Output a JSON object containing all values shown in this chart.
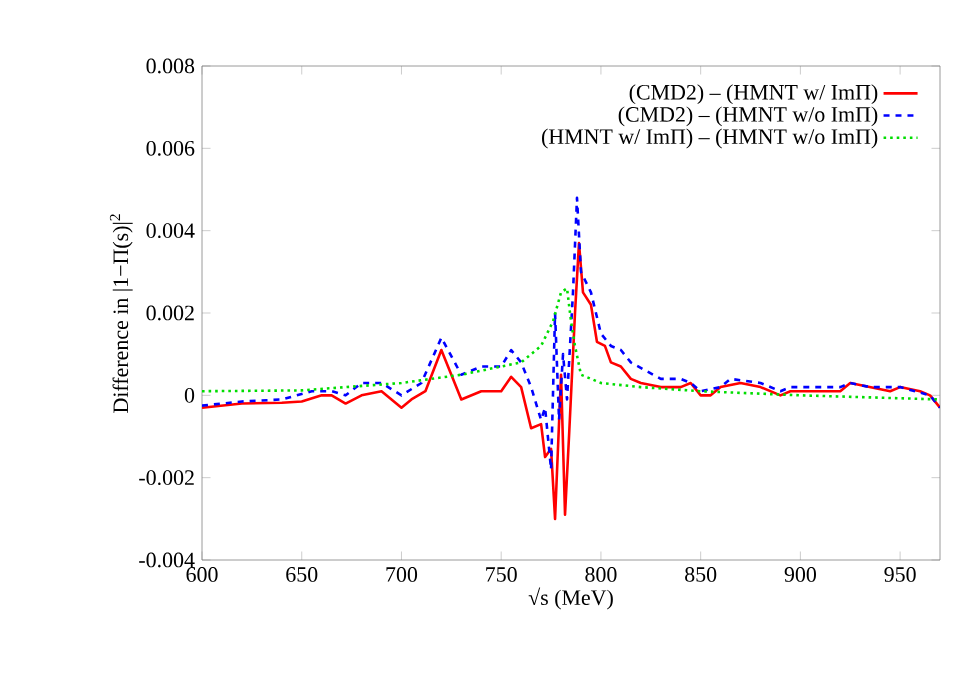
{
  "chart_data": {
    "type": "line",
    "xlabel": "√s (MeV)",
    "ylabel": "Difference in |1−Π(s)|$^{2}$",
    "xlim": [
      600,
      970
    ],
    "xticks": [
      600,
      650,
      700,
      750,
      800,
      850,
      900,
      950
    ],
    "ylim": [
      -0.004,
      0.008
    ],
    "yticks": [
      -0.004,
      -0.002,
      0,
      0.002,
      0.004,
      0.006,
      0.008
    ],
    "legend": "top right",
    "grid": false,
    "marker": "none",
    "series": [
      {
        "name": "(CMD2) – (HMNT w/  ImΠ)",
        "color": "#ff0000",
        "line_style": "solid",
        "x": [
          600,
          620,
          640,
          650,
          660,
          665,
          672,
          680,
          690,
          700,
          705,
          712,
          720,
          730,
          740,
          750,
          755,
          760,
          765,
          770,
          772,
          775,
          777,
          780,
          782,
          784,
          787,
          789,
          791,
          795,
          798,
          802,
          805,
          810,
          815,
          820,
          830,
          840,
          845,
          850,
          855,
          860,
          870,
          880,
          890,
          895,
          920,
          925,
          935,
          945,
          950,
          960,
          965,
          970
        ],
        "values": [
          -0.0003,
          -0.0002,
          -0.00018,
          -0.00015,
          0,
          0,
          -0.0002,
          0,
          0.0001,
          -0.0003,
          -0.0001,
          0.0001,
          0.0011,
          -0.0001,
          0.0001,
          0.0001,
          0.00045,
          0.0002,
          -0.0008,
          -0.0007,
          -0.0015,
          -0.0013,
          -0.003,
          0.0005,
          -0.0029,
          -0.001,
          0.002,
          0.0037,
          0.0025,
          0.0022,
          0.0013,
          0.0012,
          0.0008,
          0.0007,
          0.0004,
          0.0003,
          0.0002,
          0.0002,
          0.0003,
          0,
          0,
          0.0002,
          0.0003,
          0.0002,
          0,
          0.0001,
          0.0001,
          0.0003,
          0.0002,
          0.0001,
          0.0002,
          0.0001,
          0,
          -0.0003
        ]
      },
      {
        "name": "(CMD2) – (HMNT w/o ImΠ)",
        "color": "#0000ff",
        "line_style": "dashed",
        "x": [
          600,
          620,
          640,
          655,
          665,
          672,
          680,
          690,
          700,
          710,
          720,
          730,
          740,
          750,
          755,
          760,
          765,
          770,
          772,
          775,
          777,
          779,
          781,
          783,
          786,
          788,
          790,
          795,
          800,
          805,
          810,
          815,
          830,
          840,
          845,
          850,
          860,
          865,
          880,
          890,
          895,
          920,
          925,
          935,
          945,
          950,
          965,
          970
        ],
        "values": [
          -0.00025,
          -0.00015,
          -0.0001,
          0.0001,
          0.0001,
          0,
          0.0003,
          0.0003,
          0,
          0.0003,
          0.0014,
          0.0005,
          0.0007,
          0.0007,
          0.0011,
          0.0008,
          0.0002,
          -0.0006,
          -0.0003,
          -0.0018,
          0.002,
          -0.0006,
          0.001,
          -0.0001,
          0.0025,
          0.0048,
          0.003,
          0.0025,
          0.0015,
          0.0012,
          0.0011,
          0.0008,
          0.0004,
          0.0004,
          0.0003,
          0.0001,
          0.0002,
          0.0004,
          0.0003,
          0.0001,
          0.0002,
          0.0002,
          0.0003,
          0.0002,
          0.0002,
          0.0002,
          0,
          -0.0003
        ]
      },
      {
        "name": "(HMNT w/  ImΠ) – (HMNT w/o ImΠ)",
        "color": "#00dd00",
        "line_style": "dotted",
        "x": [
          600,
          650,
          700,
          730,
          760,
          770,
          776,
          780,
          783,
          785,
          787,
          790,
          800,
          820,
          850,
          900,
          970
        ],
        "values": [
          0.0001,
          0.00012,
          0.0003,
          0.0005,
          0.0008,
          0.0012,
          0.0018,
          0.0025,
          0.0026,
          0.0018,
          0.0012,
          0.0005,
          0.0003,
          0.0002,
          0.0001,
          0,
          -0.0001
        ]
      }
    ]
  }
}
